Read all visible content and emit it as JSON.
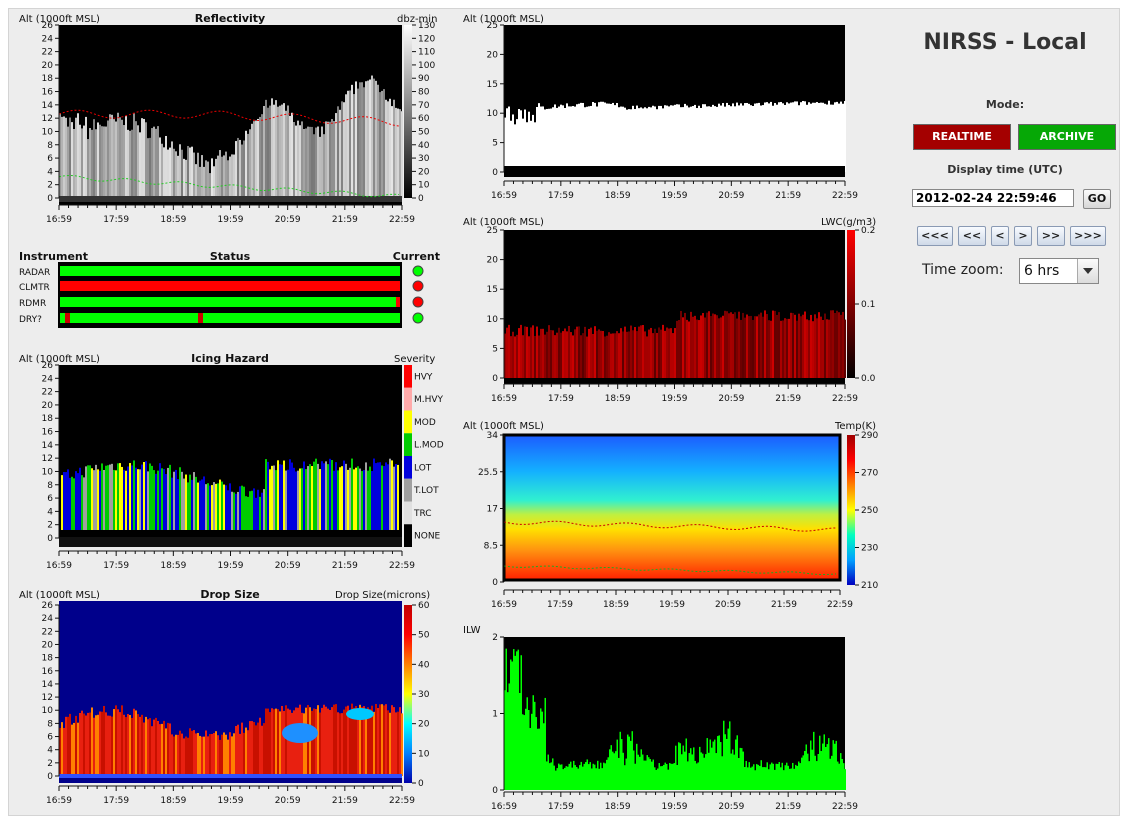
{
  "app": {
    "title": "NIRSS - Local",
    "mode_label": "Mode:",
    "realtime_label": "REALTIME",
    "archive_label": "ARCHIVE",
    "display_time_label": "Display time (UTC)",
    "display_time_value": "2012-02-24 22:59:46",
    "go_label": "GO",
    "nav": [
      "<<<",
      "<<",
      "<",
      ">",
      ">>",
      ">>>"
    ],
    "time_zoom_label": "Time zoom:",
    "time_zoom_value": "6 hrs"
  },
  "colors": {
    "bg": "#ededed",
    "realtime": "#a40000",
    "archive": "#06a806",
    "status_green": "#00ff00",
    "status_red": "#ff0000"
  },
  "time_labels": [
    "16:59",
    "17:59",
    "18:59",
    "19:59",
    "20:59",
    "21:59",
    "22:59"
  ],
  "alt_ticks_26": [
    "0",
    "2",
    "4",
    "6",
    "8",
    "10",
    "12",
    "14",
    "16",
    "18",
    "20",
    "22",
    "24",
    "26"
  ],
  "reflectivity": {
    "ylabel": "Alt (1000ft MSL)",
    "title": "Reflectivity",
    "unit": "dbz-min",
    "scale": [
      "0",
      "10",
      "20",
      "30",
      "40",
      "50",
      "60",
      "70",
      "80",
      "90",
      "100",
      "110",
      "120",
      "130"
    ]
  },
  "status": {
    "col_instrument": "Instrument",
    "col_status": "Status",
    "col_current": "Current",
    "rows": [
      {
        "name": "RADAR",
        "current": "green"
      },
      {
        "name": "CLMTR",
        "current": "red"
      },
      {
        "name": "RDMR",
        "current": "red"
      },
      {
        "name": "DRY?",
        "current": "green"
      }
    ]
  },
  "icing": {
    "ylabel": "Alt (1000ft MSL)",
    "title": "Icing Hazard",
    "unit": "Severity",
    "levels": [
      "HVY",
      "M.HVY",
      "MOD",
      "L.MOD",
      "LOT",
      "T.LOT",
      "TRC",
      "NONE"
    ]
  },
  "dropsize": {
    "ylabel": "Alt (1000ft MSL)",
    "title": "Drop Size",
    "unit": "Drop Size(microns)",
    "scale": [
      "0",
      "10",
      "20",
      "30",
      "40",
      "50",
      "60"
    ]
  },
  "mask": {
    "ylabel": "Alt (1000ft MSL)",
    "yticks": [
      "0",
      "5",
      "10",
      "15",
      "20",
      "25"
    ]
  },
  "lwc": {
    "ylabel": "Alt (1000ft MSL)",
    "unit": "LWC(g/m3)",
    "yticks": [
      "0",
      "5",
      "10",
      "15",
      "20",
      "25"
    ],
    "scale": [
      "0.0",
      "0.1",
      "0.2"
    ]
  },
  "temp": {
    "ylabel": "Alt (1000ft MSL)",
    "unit": "Temp(K)",
    "yticks": [
      "0",
      "8.5",
      "17",
      "25.5",
      "34"
    ],
    "scale": [
      "210",
      "230",
      "250",
      "270",
      "290"
    ]
  },
  "ilw": {
    "ylabel": "ILW",
    "yticks": [
      "0",
      "1",
      "2"
    ]
  }
}
